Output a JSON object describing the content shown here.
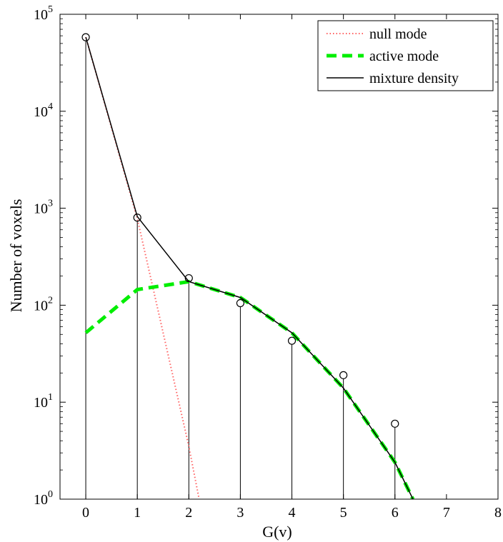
{
  "chart_data": {
    "type": "line",
    "xlabel": "G(v)",
    "ylabel": "Number of voxels",
    "xlim": [
      -0.5,
      8
    ],
    "ylim": [
      1,
      100000
    ],
    "yscale": "log",
    "xticks": [
      0,
      1,
      2,
      3,
      4,
      5,
      6,
      7,
      8
    ],
    "yticks": [
      {
        "value": 1,
        "base": "10",
        "exp": "0"
      },
      {
        "value": 10,
        "base": "10",
        "exp": "1"
      },
      {
        "value": 100,
        "base": "10",
        "exp": "2"
      },
      {
        "value": 1000,
        "base": "10",
        "exp": "3"
      },
      {
        "value": 10000,
        "base": "10",
        "exp": "4"
      },
      {
        "value": 100000,
        "base": "10",
        "exp": "5"
      }
    ],
    "grid": false,
    "legend_position": "top-right",
    "observed": {
      "x": [
        0,
        1,
        2,
        3,
        4,
        5,
        6
      ],
      "y": [
        58000,
        800,
        190,
        105,
        43,
        19,
        6
      ]
    },
    "series": [
      {
        "name": "null mode",
        "style": "dotted",
        "color": "#ff6060",
        "x": [
          0,
          1,
          2,
          2.2
        ],
        "y": [
          58000,
          780,
          3.5,
          1
        ]
      },
      {
        "name": "active mode",
        "style": "dashed",
        "color": "#00ee00",
        "x": [
          0,
          1,
          2,
          3,
          4,
          5,
          6,
          6.35
        ],
        "y": [
          52,
          145,
          175,
          120,
          52,
          14,
          2.4,
          1
        ]
      },
      {
        "name": "mixture density",
        "style": "solid",
        "color": "#000000",
        "x": [
          0,
          1,
          2,
          3,
          4,
          5,
          6,
          6.35
        ],
        "y": [
          58000,
          820,
          175,
          120,
          52,
          14,
          2.4,
          1
        ]
      }
    ]
  }
}
